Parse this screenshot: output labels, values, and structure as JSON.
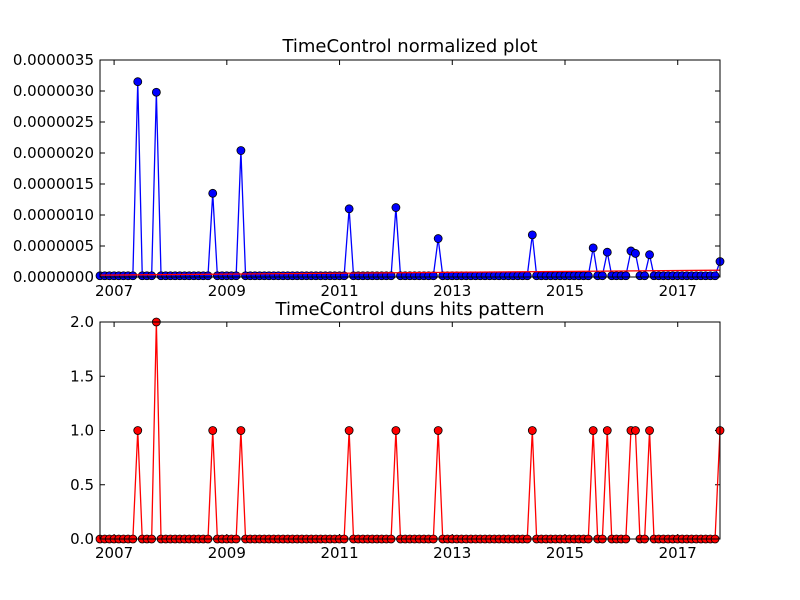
{
  "figure": {
    "background": "#ffffff"
  },
  "chart_data": [
    {
      "type": "line",
      "title": "TimeControl normalized plot",
      "xlabel": "",
      "ylabel": "",
      "xlim": [
        2006.75,
        2017.75
      ],
      "ylim": [
        0,
        3.5e-06
      ],
      "x_ticks": [
        2007,
        2009,
        2011,
        2013,
        2015,
        2017
      ],
      "y_ticks": [
        0,
        5e-07,
        1e-06,
        1.5e-06,
        2e-06,
        2.5e-06,
        3e-06,
        3.5e-06
      ],
      "y_tick_labels": [
        "0.0000000",
        "0.0000005",
        "0.0000010",
        "0.0000015",
        "0.0000020",
        "0.0000025",
        "0.0000030",
        "0.0000035"
      ],
      "grid": false,
      "series": [
        {
          "color": "#0000ff",
          "marker": "circle",
          "baseline": 2e-08,
          "baseline_every": 0.0833,
          "peaks": [
            {
              "x": 2007.42,
              "y": 3.15e-06
            },
            {
              "x": 2007.75,
              "y": 2.98e-06
            },
            {
              "x": 2008.75,
              "y": 1.35e-06
            },
            {
              "x": 2009.25,
              "y": 2.04e-06
            },
            {
              "x": 2011.17,
              "y": 1.1e-06
            },
            {
              "x": 2012.0,
              "y": 1.12e-06
            },
            {
              "x": 2012.75,
              "y": 6.2e-07
            },
            {
              "x": 2014.42,
              "y": 6.8e-07
            },
            {
              "x": 2015.5,
              "y": 4.7e-07
            },
            {
              "x": 2015.75,
              "y": 4e-07
            },
            {
              "x": 2016.17,
              "y": 4.2e-07
            },
            {
              "x": 2016.25,
              "y": 3.8e-07
            },
            {
              "x": 2016.5,
              "y": 3.6e-07
            },
            {
              "x": 2017.75,
              "y": 2.5e-07
            }
          ]
        },
        {
          "color": "#ff0000",
          "marker": "none",
          "points": [
            {
              "x": 2006.75,
              "y": 3e-08
            },
            {
              "x": 2017.75,
              "y": 1.1e-07
            }
          ]
        }
      ]
    },
    {
      "type": "line",
      "title": "TimeControl duns hits pattern",
      "xlabel": "",
      "ylabel": "",
      "xlim": [
        2006.75,
        2017.75
      ],
      "ylim": [
        0,
        2
      ],
      "x_ticks": [
        2007,
        2009,
        2011,
        2013,
        2015,
        2017
      ],
      "y_ticks": [
        0,
        0.5,
        1,
        1.5,
        2
      ],
      "y_tick_labels": [
        "0.0",
        "0.5",
        "1.0",
        "1.5",
        "2.0"
      ],
      "grid": false,
      "series": [
        {
          "color": "#ff0000",
          "marker": "circle",
          "baseline": 0,
          "baseline_every": 0.0833,
          "peaks": [
            {
              "x": 2007.42,
              "y": 1
            },
            {
              "x": 2007.75,
              "y": 2
            },
            {
              "x": 2008.75,
              "y": 1
            },
            {
              "x": 2009.25,
              "y": 1
            },
            {
              "x": 2011.17,
              "y": 1
            },
            {
              "x": 2012.0,
              "y": 1
            },
            {
              "x": 2012.75,
              "y": 1
            },
            {
              "x": 2014.42,
              "y": 1
            },
            {
              "x": 2015.5,
              "y": 1
            },
            {
              "x": 2015.75,
              "y": 1
            },
            {
              "x": 2016.17,
              "y": 1
            },
            {
              "x": 2016.25,
              "y": 1
            },
            {
              "x": 2016.5,
              "y": 1
            },
            {
              "x": 2017.75,
              "y": 1
            }
          ]
        }
      ]
    }
  ]
}
